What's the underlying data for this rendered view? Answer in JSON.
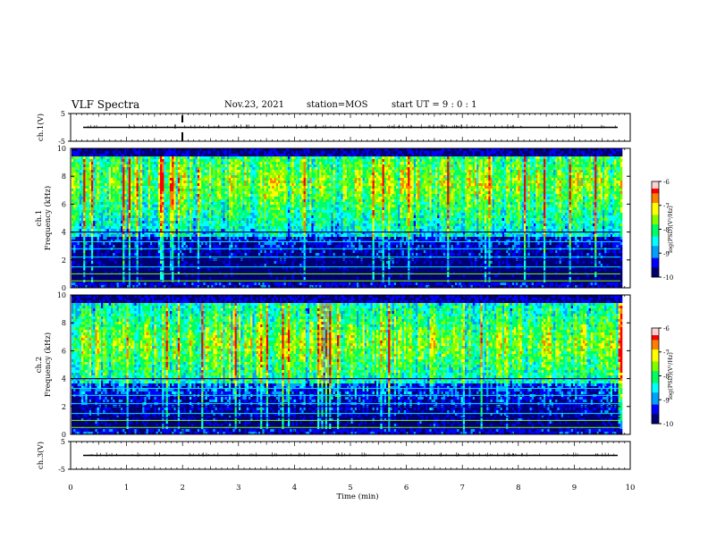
{
  "header": {
    "title": "VLF Spectra",
    "date": "Nov.23, 2021",
    "station": "station=MOS",
    "start": "start UT = 9 : 0 : 1"
  },
  "chart_data": [
    {
      "type": "line",
      "ylabel": "ch.1(V)",
      "ylim": [
        -5,
        5
      ],
      "yticks": [
        "5",
        "-5"
      ],
      "xlim": [
        0,
        10
      ],
      "description_values": {
        "baseline": 0
      }
    },
    {
      "type": "heatmap",
      "ylabel_line1": "ch.1",
      "ylabel_line2": "Frequency (kHz)",
      "ylim": [
        0,
        10
      ],
      "yticks": [
        "0",
        "2",
        "4",
        "6",
        "8",
        "10"
      ],
      "xlim": [
        0,
        10
      ],
      "colorbar": {
        "label": "log(PSD)(V²/Hz)",
        "range": [
          -10,
          -6
        ],
        "ticks": [
          "-6",
          "-7",
          "-8",
          "-9",
          "-10"
        ]
      },
      "band_peak_khz": 7.5
    },
    {
      "type": "heatmap",
      "ylabel_line1": "ch.2",
      "ylabel_line2": "Frequency (kHz)",
      "ylim": [
        0,
        10
      ],
      "yticks": [
        "0",
        "2",
        "4",
        "6",
        "8",
        "10"
      ],
      "xlim": [
        0,
        10
      ],
      "colorbar": {
        "label": "log(PSD)(V²/Hz)",
        "range": [
          -10,
          -6
        ],
        "ticks": [
          "-6",
          "-7",
          "-8",
          "-9",
          "-10"
        ]
      },
      "band_peak_khz": 6.5
    },
    {
      "type": "line",
      "ylabel": "ch.3(V)",
      "ylim": [
        -5,
        5
      ],
      "yticks": [
        "5",
        "-5"
      ],
      "xlim": [
        0,
        10
      ],
      "xticks": [
        "0",
        "1",
        "2",
        "3",
        "4",
        "5",
        "6",
        "7",
        "8",
        "9",
        "10"
      ],
      "xlabel": "Time (min)",
      "description_values": {
        "baseline": 0
      }
    }
  ],
  "colors": {
    "scale": [
      "#000070",
      "#0000ff",
      "#00a0ff",
      "#00ffff",
      "#00ff60",
      "#80ff00",
      "#ffff00",
      "#ff8000",
      "#ff0000",
      "#ffe0e0"
    ]
  }
}
